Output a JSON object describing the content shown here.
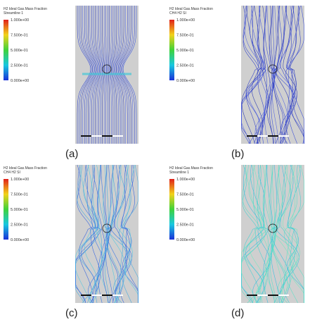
{
  "panels": [
    {
      "legend_title": "H2 Ideal Gas.Mass Fraction",
      "legend_subtitle": "Streamline 1",
      "ticks": [
        "1.000e+00",
        "7.500e-01",
        "5.000e-01",
        "2.500e-01",
        "0.000e+00"
      ],
      "caption": "(a)"
    },
    {
      "legend_title": "H2 Ideal Gas.Mass Fraction",
      "legend_subtitle": "CH4 H2 SI",
      "ticks": [
        "1.000e+00",
        "7.500e-01",
        "5.000e-01",
        "2.500e-01",
        "0.000e+00"
      ],
      "caption": "(b)"
    },
    {
      "legend_title": "H2 Ideal Gas.Mass Fraction",
      "legend_subtitle": "CH4 H2 SI",
      "ticks": [
        "1.000e+00",
        "7.500e-01",
        "5.000e-01",
        "2.500e-01",
        "0.000e+00"
      ],
      "caption": "(c)"
    },
    {
      "legend_title": "H2 Ideal Gas.Mass Fraction",
      "legend_subtitle": "Streamline 1",
      "ticks": [
        "1.000e+00",
        "7.500e-01",
        "5.000e-01",
        "2.500e-01",
        "0.000e+00"
      ],
      "caption": "(d)"
    }
  ]
}
